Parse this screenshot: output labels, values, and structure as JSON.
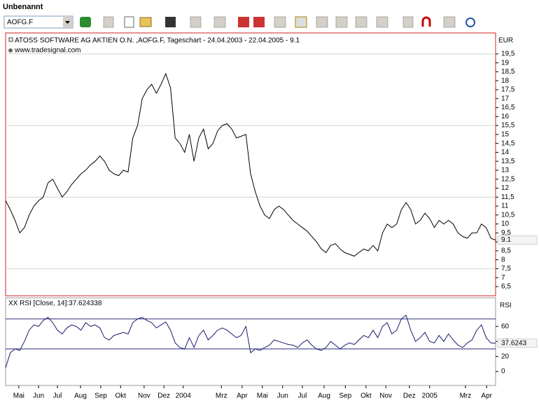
{
  "window": {
    "title": "Unbenannt",
    "symbol": "AOFG.F"
  },
  "chart_data": [
    {
      "type": "line",
      "title": "ATOSS SOFTWARE AG AKTIEN O.N. ,AOFG.F, Tageschart - 24.04.2003 - 22.04.2005 - 9.1",
      "subtitle": "www.tradesignal.com",
      "y_label": "EUR",
      "color": "#000000",
      "xlim": [
        0,
        104
      ],
      "x": [
        0,
        1,
        2,
        3,
        4,
        5,
        6,
        7,
        8,
        9,
        10,
        11,
        12,
        13,
        14,
        15,
        16,
        17,
        18,
        19,
        20,
        21,
        22,
        23,
        24,
        25,
        26,
        27,
        28,
        29,
        30,
        31,
        32,
        33,
        34,
        35,
        36,
        37,
        38,
        39,
        40,
        41,
        42,
        43,
        44,
        45,
        46,
        47,
        48,
        49,
        50,
        51,
        52,
        53,
        54,
        55,
        56,
        57,
        58,
        59,
        60,
        61,
        62,
        63,
        64,
        65,
        66,
        67,
        68,
        69,
        70,
        71,
        72,
        73,
        74,
        75,
        76,
        77,
        78,
        79,
        80,
        81,
        82,
        83,
        84,
        85,
        86,
        87,
        88,
        89,
        90,
        91,
        92,
        93,
        94,
        95,
        96,
        97,
        98,
        99,
        100,
        101,
        102,
        103,
        104
      ],
      "values": [
        11.3,
        10.8,
        10.2,
        9.5,
        9.8,
        10.5,
        11.0,
        11.3,
        11.5,
        12.3,
        12.5,
        12.0,
        11.5,
        11.8,
        12.2,
        12.5,
        12.8,
        13.0,
        13.3,
        13.5,
        13.8,
        13.5,
        13.0,
        12.8,
        12.7,
        13.0,
        12.9,
        14.8,
        15.5,
        17.0,
        17.5,
        17.8,
        17.3,
        17.8,
        18.4,
        17.6,
        14.8,
        14.5,
        14.0,
        15.0,
        13.5,
        14.8,
        15.3,
        14.2,
        14.5,
        15.2,
        15.5,
        15.6,
        15.3,
        14.8,
        14.9,
        15.0,
        12.8,
        11.8,
        11.0,
        10.5,
        10.3,
        10.8,
        11.0,
        10.8,
        10.5,
        10.2,
        10.0,
        9.8,
        9.6,
        9.3,
        9.0,
        8.6,
        8.4,
        8.8,
        8.9,
        8.6,
        8.4,
        8.3,
        8.2,
        8.4,
        8.6,
        8.5,
        8.8,
        8.5,
        9.5,
        10.0,
        9.8,
        10.0,
        10.8,
        11.2,
        10.8,
        10.0,
        10.2,
        10.6,
        10.3,
        9.8,
        10.2,
        10.0,
        10.2,
        10.0,
        9.5,
        9.3,
        9.2,
        9.5,
        9.5,
        10.0,
        9.8,
        9.2,
        9.1
      ],
      "ylim": [
        5.99,
        20.67
      ],
      "yticks": [
        {
          "value": 6.5,
          "label": "6,5"
        },
        7,
        {
          "value": 7.5,
          "label": "7,5"
        },
        8,
        {
          "value": 8.5,
          "label": "8,5"
        },
        9,
        {
          "value": 9.5,
          "label": "9,5"
        },
        10,
        {
          "value": 10.5,
          "label": "10,5"
        },
        11,
        {
          "value": 11.5,
          "label": "11,5"
        },
        12,
        {
          "value": 12.5,
          "label": "12,5"
        },
        13,
        {
          "value": 13.5,
          "label": "13,5"
        },
        14,
        {
          "value": 14.5,
          "label": "14,5"
        },
        15,
        {
          "value": 15.5,
          "label": "15,5"
        },
        16,
        {
          "value": 16.5,
          "label": "16,5"
        },
        17,
        {
          "value": 17.5,
          "label": "17,5"
        },
        18,
        {
          "value": 18.5,
          "label": "18,5"
        },
        19,
        {
          "value": 19.5,
          "label": "19,5"
        }
      ],
      "gridlines": [
        7.5,
        11.5,
        15.5,
        19.5
      ],
      "marker": 9.1
    },
    {
      "type": "line",
      "title": "XX RSI [Close, 14]:37.624338",
      "y_label": "RSI",
      "color": "#1a1a6e",
      "xlim": [
        0,
        104
      ],
      "x": [
        0,
        1,
        2,
        3,
        4,
        5,
        6,
        7,
        8,
        9,
        10,
        11,
        12,
        13,
        14,
        15,
        16,
        17,
        18,
        19,
        20,
        21,
        22,
        23,
        24,
        25,
        26,
        27,
        28,
        29,
        30,
        31,
        32,
        33,
        34,
        35,
        36,
        37,
        38,
        39,
        40,
        41,
        42,
        43,
        44,
        45,
        46,
        47,
        48,
        49,
        50,
        51,
        52,
        53,
        54,
        55,
        56,
        57,
        58,
        59,
        60,
        61,
        62,
        63,
        64,
        65,
        66,
        67,
        68,
        69,
        70,
        71,
        72,
        73,
        74,
        75,
        76,
        77,
        78,
        79,
        80,
        81,
        82,
        83,
        84,
        85,
        86,
        87,
        88,
        89,
        90,
        91,
        92,
        93,
        94,
        95,
        96,
        97,
        98,
        99,
        100,
        101,
        102,
        103,
        104
      ],
      "values": [
        5,
        25,
        30,
        28,
        40,
        55,
        62,
        60,
        68,
        72,
        65,
        55,
        50,
        58,
        62,
        60,
        55,
        65,
        60,
        62,
        58,
        45,
        42,
        48,
        50,
        52,
        50,
        65,
        70,
        72,
        68,
        65,
        58,
        62,
        66,
        55,
        38,
        32,
        30,
        45,
        32,
        48,
        55,
        42,
        48,
        55,
        58,
        55,
        50,
        45,
        48,
        60,
        25,
        30,
        28,
        32,
        35,
        42,
        40,
        38,
        36,
        35,
        32,
        38,
        42,
        35,
        30,
        28,
        32,
        40,
        35,
        30,
        35,
        38,
        36,
        42,
        48,
        45,
        55,
        45,
        60,
        65,
        50,
        55,
        70,
        75,
        55,
        40,
        45,
        52,
        40,
        38,
        48,
        40,
        50,
        42,
        35,
        32,
        38,
        42,
        55,
        62,
        45,
        38,
        37.624338
      ],
      "ylim": [
        -18.6,
        98
      ],
      "yticks": [
        0,
        20,
        40,
        60
      ],
      "hlines": [
        30,
        70
      ],
      "marker": {
        "value": 37.624338,
        "label": "37.6243"
      },
      "xticks": [
        {
          "value": 2.8,
          "label": "Mai"
        },
        {
          "value": 7.0,
          "label": "Jun"
        },
        {
          "value": 11.0,
          "label": "Jul"
        },
        {
          "value": 15.9,
          "label": "Aug"
        },
        {
          "value": 20.2,
          "label": "Sep"
        },
        {
          "value": 24.4,
          "label": "Okt"
        },
        {
          "value": 29.4,
          "label": "Nov"
        },
        {
          "value": 33.6,
          "label": "Dez"
        },
        {
          "value": 37.7,
          "label": "2004"
        },
        {
          "value": 45.8,
          "label": "Mrz"
        },
        {
          "value": 50.2,
          "label": "Apr"
        },
        {
          "value": 54.5,
          "label": "Mai"
        },
        {
          "value": 58.8,
          "label": "Jun"
        },
        {
          "value": 63.0,
          "label": "Jul"
        },
        {
          "value": 67.6,
          "label": "Aug"
        },
        {
          "value": 72.1,
          "label": "Sep"
        },
        {
          "value": 76.5,
          "label": "Okt"
        },
        {
          "value": 80.7,
          "label": "Nov"
        },
        {
          "value": 85.7,
          "label": "Dez"
        },
        {
          "value": 90.0,
          "label": "2005"
        },
        {
          "value": 97.6,
          "label": "Mrz"
        },
        {
          "value": 102.1,
          "label": "Apr"
        }
      ]
    }
  ]
}
